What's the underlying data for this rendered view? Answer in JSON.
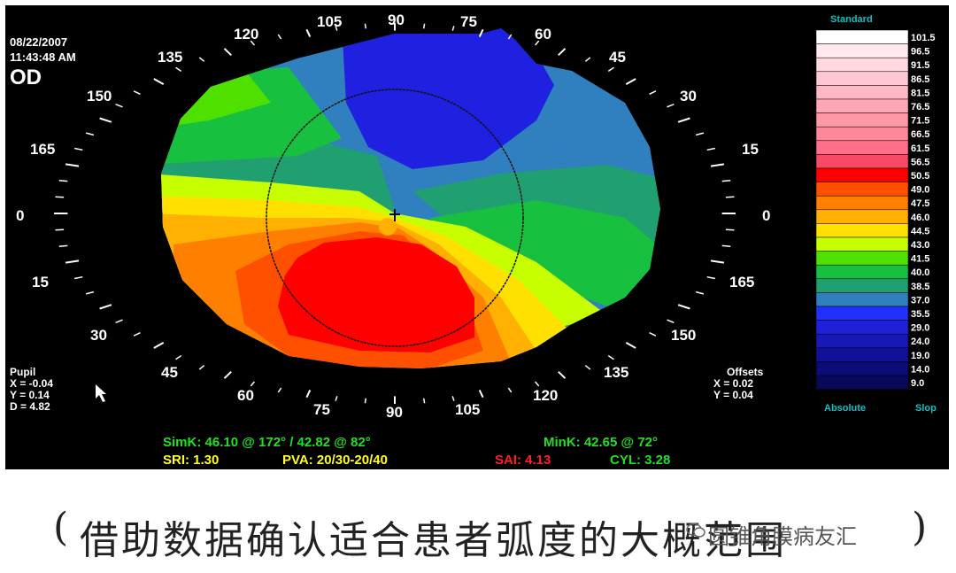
{
  "header": {
    "date": "08/22/2007",
    "time": "11:43:48 AM",
    "eye": "OD"
  },
  "pupil": {
    "title": "Pupil",
    "x": "X = -0.04",
    "y": "Y = 0.14",
    "d": "D = 4.82"
  },
  "offsets": {
    "title": "Offsets",
    "x": "X = 0.02",
    "y": "Y = 0.04"
  },
  "scale": {
    "title": "Standard",
    "mode_left": "Absolute",
    "mode_right": "Slop",
    "steps": [
      {
        "value": "101.5",
        "color": "#ffffff"
      },
      {
        "value": "96.5",
        "color": "#ffe8ee"
      },
      {
        "value": "91.5",
        "color": "#ffd8e0"
      },
      {
        "value": "86.5",
        "color": "#ffc8d2"
      },
      {
        "value": "81.5",
        "color": "#ffb8c4"
      },
      {
        "value": "76.5",
        "color": "#ffa8b4"
      },
      {
        "value": "71.5",
        "color": "#ff98a6"
      },
      {
        "value": "66.5",
        "color": "#ff8898"
      },
      {
        "value": "61.5",
        "color": "#ff7088"
      },
      {
        "value": "56.5",
        "color": "#f84a66"
      },
      {
        "value": "50.5",
        "color": "#ff0000"
      },
      {
        "value": "49.0",
        "color": "#ff5000"
      },
      {
        "value": "47.5",
        "color": "#ff8000"
      },
      {
        "value": "46.0",
        "color": "#ffb000"
      },
      {
        "value": "44.5",
        "color": "#ffe000"
      },
      {
        "value": "43.0",
        "color": "#c8ff00"
      },
      {
        "value": "41.5",
        "color": "#50e000"
      },
      {
        "value": "40.0",
        "color": "#18c040"
      },
      {
        "value": "38.5",
        "color": "#20a070"
      },
      {
        "value": "37.0",
        "color": "#3080c0"
      },
      {
        "value": "35.5",
        "color": "#2030ff"
      },
      {
        "value": "29.0",
        "color": "#2020d8"
      },
      {
        "value": "24.0",
        "color": "#1818b8"
      },
      {
        "value": "19.0",
        "color": "#101098"
      },
      {
        "value": "14.0",
        "color": "#0c0c78"
      },
      {
        "value": "9.0",
        "color": "#080858"
      }
    ]
  },
  "angles": {
    "top": [
      "105",
      "90",
      "75",
      "120",
      "60",
      "135",
      "45",
      "150",
      "30",
      "165",
      "15",
      "0",
      "0"
    ],
    "bottom": [
      "15",
      "165",
      "30",
      "150",
      "45",
      "135",
      "60",
      "120",
      "75",
      "90",
      "105"
    ]
  },
  "stats": {
    "simk_label": "SimK: 46.10 @ 172° / 42.82 @ 82°",
    "mink_label": "MinK: 42.65 @ 72°",
    "sri_label": "SRI: 1.30",
    "pva_label": "PVA: 20/30-20/40",
    "sai_label": "SAI: 4.13",
    "cyl_label": "CYL: 3.28",
    "color_green": "#20e020",
    "color_yellow": "#ffff20",
    "color_red": "#ff2020"
  },
  "caption": {
    "open": "(",
    "text": "借助数据确认适合患者弧度的大概范围",
    "close": ")",
    "watermark": "圆锥角膜病友汇"
  }
}
